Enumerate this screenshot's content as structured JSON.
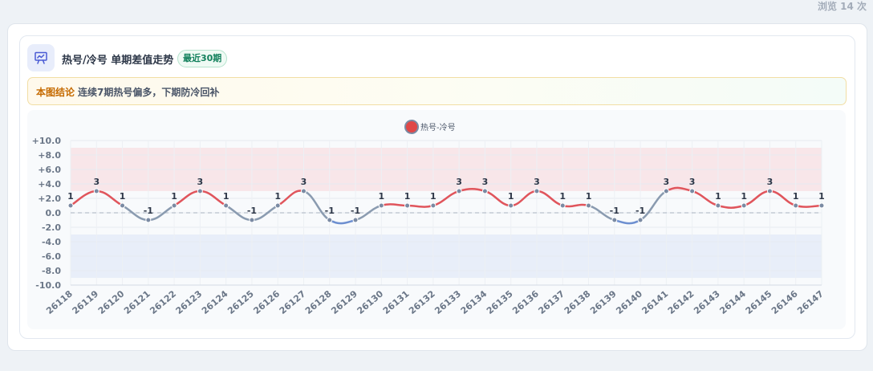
{
  "page": {
    "views_text": "浏览 14 次"
  },
  "card": {
    "icon": "chart-icon",
    "title": "热号/冷号 单期差值走势",
    "badge": "最近30期"
  },
  "conclusion": {
    "label": "本图结论",
    "text": "连续7期热号偏多，下期防冷回补"
  },
  "colors": {
    "positive_line": "#e0555c",
    "negative_line": "#6d8fd0",
    "neutral_line": "#8a9bb0",
    "hot_band": "#f8e6e9",
    "cold_band": "#e8eef9",
    "legend_dot": "#e04848",
    "badge_text": "#12805c",
    "conclusion_label": "#c56a00"
  },
  "chart_data": {
    "type": "line",
    "title": "",
    "xlabel": "",
    "ylabel": "",
    "ylim": [
      -10,
      10
    ],
    "y_ticks": [
      "+10.0",
      "+8.0",
      "+6.0",
      "+4.0",
      "+2.0",
      "0.0",
      "-2.0",
      "-4.0",
      "-6.0",
      "-8.0",
      "-10.0"
    ],
    "y_tick_values": [
      10,
      8,
      6,
      4,
      2,
      0,
      -2,
      -4,
      -6,
      -8,
      -10
    ],
    "hot_band": [
      3,
      9
    ],
    "cold_band": [
      -3,
      -9
    ],
    "grid": true,
    "legend_position": "top-center",
    "categories": [
      "26118",
      "26119",
      "26120",
      "26121",
      "26122",
      "26123",
      "26124",
      "26125",
      "26126",
      "26127",
      "26128",
      "26129",
      "26130",
      "26131",
      "26132",
      "26133",
      "26134",
      "26135",
      "26136",
      "26137",
      "26138",
      "26139",
      "26140",
      "26141",
      "26142",
      "26143",
      "26144",
      "26145",
      "26146",
      "26147"
    ],
    "series": [
      {
        "name": "热号-冷号",
        "values": [
          1,
          3,
          1,
          -1,
          1,
          3,
          1,
          -1,
          1,
          3,
          -1,
          -1,
          1,
          1,
          1,
          3,
          3,
          1,
          3,
          1,
          1,
          -1,
          -1,
          3,
          3,
          1,
          1,
          3,
          1,
          1
        ],
        "labels": [
          "1",
          "3",
          "1",
          "-1",
          "1",
          "3",
          "1",
          "-1",
          "1",
          "3",
          "-1",
          "-1",
          "1",
          "1",
          "1",
          "3",
          "3",
          "1",
          "3",
          "1",
          "1",
          "-1",
          "-1",
          "3",
          "3",
          "1",
          "1",
          "3",
          "1",
          "1"
        ]
      }
    ]
  }
}
